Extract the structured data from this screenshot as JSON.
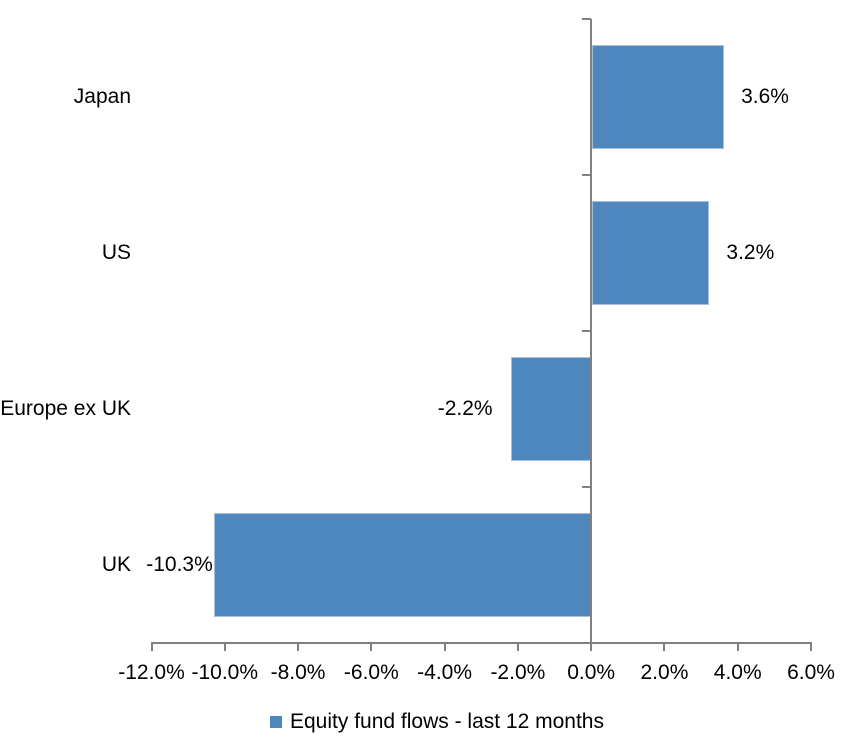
{
  "chart_data": {
    "type": "bar",
    "orientation": "horizontal",
    "title": "",
    "xlabel": "",
    "ylabel": "",
    "categories": [
      "Japan",
      "US",
      "Europe ex UK",
      "UK"
    ],
    "series": [
      {
        "name": "Equity fund flows - last 12 months",
        "values": [
          3.6,
          3.2,
          -2.2,
          -10.3
        ],
        "data_labels": [
          "3.6%",
          "3.2%",
          "-2.2%",
          "-10.3%"
        ]
      }
    ],
    "xlim": [
      -12,
      6
    ],
    "x_tick_step": 2,
    "x_tick_labels": [
      "-12.0%",
      "-10.0%",
      "-8.0%",
      "-6.0%",
      "-4.0%",
      "-2.0%",
      "0.0%",
      "2.0%",
      "4.0%",
      "6.0%"
    ],
    "grid": false,
    "legend_position": "bottom",
    "legend": [
      {
        "label": "Equity fund flows - last 12 months",
        "color": "#4E87BE"
      }
    ],
    "colors": {
      "bar_fill": "#4E87BE",
      "bar_border": "#A6C1DC",
      "axis": "#808080",
      "text": "#000000",
      "background": "#FFFFFF"
    }
  }
}
